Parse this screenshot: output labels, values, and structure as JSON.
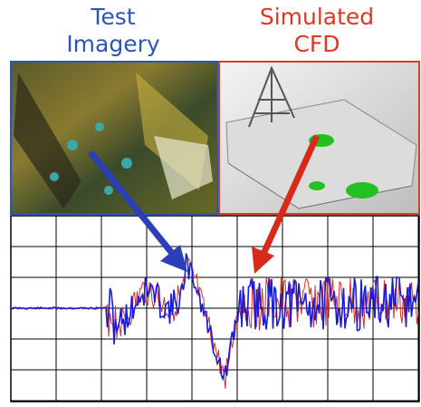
{
  "left_label": {
    "line1": "Test",
    "line2": "Imagery"
  },
  "right_label": {
    "line1": "Simulated",
    "line2": "CFD"
  }
}
